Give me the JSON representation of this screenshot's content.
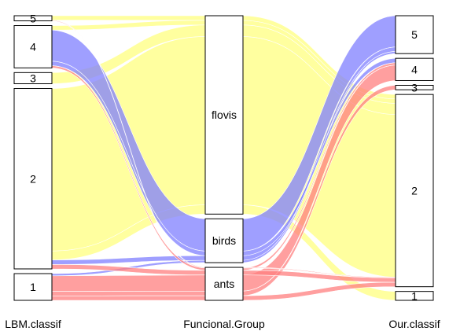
{
  "chart_data": {
    "type": "alluvial",
    "axes": [
      {
        "id": "lbm",
        "title": "LBM.classif",
        "categories": [
          {
            "key": "1",
            "label": "1"
          },
          {
            "key": "2",
            "label": "2"
          },
          {
            "key": "3",
            "label": "3"
          },
          {
            "key": "4",
            "label": "4"
          },
          {
            "key": "5",
            "label": "5"
          }
        ]
      },
      {
        "id": "group",
        "title": "Funcional.Group",
        "categories": [
          {
            "key": "ants",
            "label": "ants"
          },
          {
            "key": "birds",
            "label": "birds"
          },
          {
            "key": "flovis",
            "label": "flovis"
          }
        ]
      },
      {
        "id": "ours",
        "title": "Our.classif",
        "categories": [
          {
            "key": "1",
            "label": "1"
          },
          {
            "key": "2",
            "label": "2"
          },
          {
            "key": "3",
            "label": "3"
          },
          {
            "key": "4",
            "label": "4"
          },
          {
            "key": "5",
            "label": "5"
          }
        ]
      }
    ],
    "color_by": "group",
    "colors": {
      "ants": "#ff7f7f",
      "birds": "#7f7fff",
      "flovis": "#ffff7f"
    },
    "flows": [
      {
        "lbm": "1",
        "group": "ants",
        "ours": "4",
        "value": 7
      },
      {
        "lbm": "1",
        "group": "ants",
        "ours": "3",
        "value": 2
      },
      {
        "lbm": "1",
        "group": "ants",
        "ours": "2",
        "value": 2
      },
      {
        "lbm": "1",
        "group": "birds",
        "ours": "5",
        "value": 1
      },
      {
        "lbm": "2",
        "group": "ants",
        "ours": "2",
        "value": 2
      },
      {
        "lbm": "2",
        "group": "birds",
        "ours": "5",
        "value": 2
      },
      {
        "lbm": "2",
        "group": "flovis",
        "ours": "2",
        "value": 73
      },
      {
        "lbm": "2",
        "group": "flovis",
        "ours": "1",
        "value": 4
      },
      {
        "lbm": "3",
        "group": "flovis",
        "ours": "2",
        "value": 5
      },
      {
        "lbm": "4",
        "group": "birds",
        "ours": "5",
        "value": 14
      },
      {
        "lbm": "4",
        "group": "birds",
        "ours": "4",
        "value": 2
      },
      {
        "lbm": "4",
        "group": "ants",
        "ours": "4",
        "value": 1
      },
      {
        "lbm": "4",
        "group": "flovis",
        "ours": "2",
        "value": 2
      },
      {
        "lbm": "5",
        "group": "flovis",
        "ours": "2",
        "value": 2
      },
      {
        "lbm": "5",
        "group": "ants",
        "ours": "2",
        "value": 0.3
      }
    ]
  }
}
